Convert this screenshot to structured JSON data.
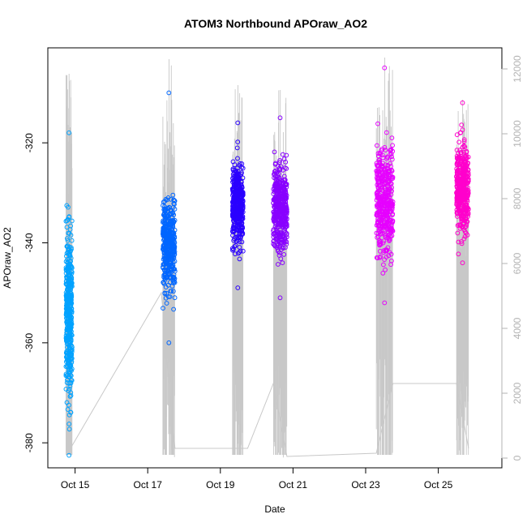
{
  "chart_data": {
    "type": "scatter",
    "title": "ATOM3 Northbound APOraw_AO2",
    "xlabel": "Date",
    "ylabel": "APOraw_AO2",
    "y2label": "",
    "x_ticks": [
      "Oct 15",
      "Oct 17",
      "Oct 19",
      "Oct 21",
      "Oct 23",
      "Oct 25"
    ],
    "xlim": [
      "2015-10-14 06:00",
      "2015-10-26 18:00"
    ],
    "ylim": [
      -385,
      -301
    ],
    "y_ticks": [
      -320,
      -340,
      -360,
      -380
    ],
    "y2lim": [
      -300,
      12650
    ],
    "y2_ticks": [
      0,
      2000,
      4000,
      6000,
      8000,
      10000,
      12000
    ],
    "grid": false,
    "legend": "none",
    "series": [
      {
        "color": "#00a2ff",
        "start": "2015-10-14 18:00",
        "end": "2015-10-14 22:00",
        "y_min": -382.5,
        "y_max": -318,
        "core": [
          -378,
          -330
        ]
      },
      {
        "color": "#0066ff",
        "start": "2015-10-17 10:00",
        "end": "2015-10-17 18:00",
        "y_min": -360,
        "y_max": -310,
        "core": [
          -354,
          -326
        ]
      },
      {
        "color": "#2a00ff",
        "start": "2015-10-19 08:00",
        "end": "2015-10-19 15:00",
        "y_min": -349,
        "y_max": -316,
        "core": [
          -345,
          -320
        ]
      },
      {
        "color": "#8800ff",
        "start": "2015-10-20 11:00",
        "end": "2015-10-20 20:00",
        "y_min": -351,
        "y_max": -315,
        "core": [
          -346,
          -320
        ]
      },
      {
        "color": "#e600ff",
        "start": "2015-10-23 07:00",
        "end": "2015-10-23 18:00",
        "y_min": -352,
        "y_max": -305,
        "core": [
          -348,
          -315
        ]
      },
      {
        "color": "#ff00cc",
        "start": "2015-10-25 12:00",
        "end": "2015-10-25 20:00",
        "y_min": -344,
        "y_max": -312,
        "core": [
          -342,
          -316
        ]
      }
    ],
    "line_series": {
      "color": "#c8c8c8",
      "axis": "right",
      "baseline_path": [
        [
          "2015-10-14 21:00",
          300
        ],
        [
          "2015-10-17 09:00",
          5100
        ],
        [
          "2015-10-17 18:00",
          300
        ],
        [
          "2015-10-19 08:00",
          300
        ],
        [
          "2015-10-19 18:00",
          300
        ],
        [
          "2015-10-20 11:00",
          2300
        ],
        [
          "2015-10-20 20:00",
          50
        ],
        [
          "2015-10-23 07:00",
          150
        ],
        [
          "2015-10-23 18:00",
          2300
        ],
        [
          "2015-10-25 12:00",
          2300
        ],
        [
          "2015-10-25 20:00",
          300
        ]
      ],
      "spike_ranges": [
        {
          "start": "2015-10-14 18:00",
          "end": "2015-10-14 22:00",
          "max": 11850,
          "low": 100
        },
        {
          "start": "2015-10-17 10:00",
          "end": "2015-10-17 18:00",
          "max": 12300,
          "low": 100
        },
        {
          "start": "2015-10-19 08:00",
          "end": "2015-10-19 15:00",
          "max": 11500,
          "low": 100
        },
        {
          "start": "2015-10-20 11:00",
          "end": "2015-10-20 20:00",
          "max": 11350,
          "low": 100
        },
        {
          "start": "2015-10-23 07:00",
          "end": "2015-10-23 18:00",
          "max": 12350,
          "low": 100
        },
        {
          "start": "2015-10-25 12:00",
          "end": "2015-10-25 20:00",
          "max": 11050,
          "low": 100
        }
      ]
    }
  }
}
